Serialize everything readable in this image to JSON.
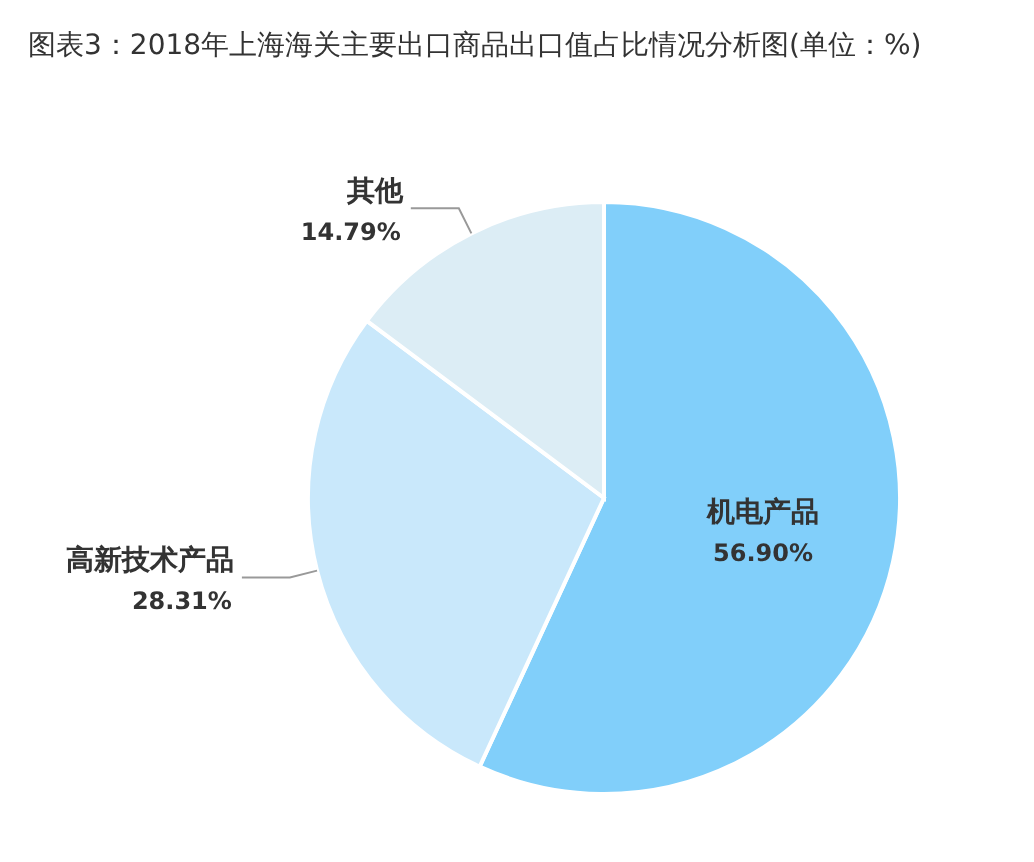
{
  "chart_data": {
    "type": "pie",
    "title": "图表3：2018年上海海关主要出口商品出口值占比情况分析图(单位：%)",
    "categories": [
      "机电产品",
      "高新技术产品",
      "其他"
    ],
    "values": [
      56.9,
      28.31,
      14.79
    ],
    "value_labels": [
      "56.90%",
      "28.31%",
      "14.79%"
    ],
    "colors": [
      "#81cffa",
      "#c9e8fb",
      "#dcedf5"
    ],
    "legend": false
  }
}
